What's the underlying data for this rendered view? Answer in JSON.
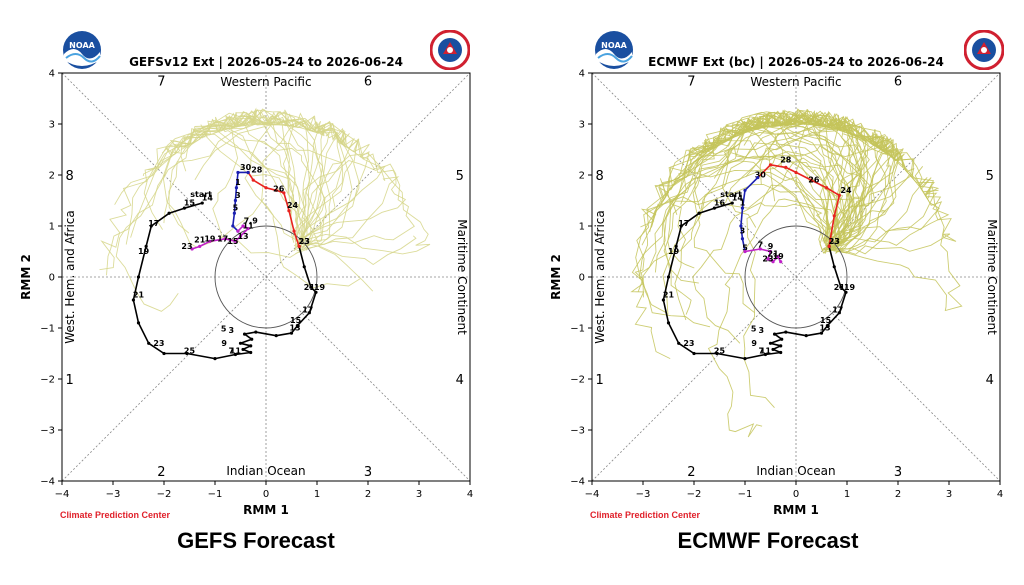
{
  "chart_data": [
    {
      "type": "line",
      "title": "GEFSv12 Ext | 2026-05-24 to 2026-06-24",
      "xlabel": "RMM 1",
      "ylabel": "RMM 2",
      "xlim": [
        -4,
        4
      ],
      "ylim": [
        -4,
        4
      ],
      "ticks": [
        "-4",
        "-3",
        "-2",
        "-1",
        "0",
        "1",
        "2",
        "3",
        "4"
      ],
      "phases": [
        "1",
        "2",
        "3",
        "4",
        "5",
        "6",
        "7",
        "8"
      ],
      "regions": {
        "top": "Western Pacific",
        "bottom": "Indian Ocean",
        "left": "West. Hem. and Africa",
        "right": "Maritime Continent"
      },
      "caption": "GEFS Forecast",
      "credit": "Climate Prediction Center",
      "start_label": "start",
      "observed": {
        "color": "#000000",
        "points": [
          [
            -1.25,
            1.45
          ],
          [
            -1.6,
            1.35
          ],
          [
            -1.9,
            1.25
          ],
          [
            -2.25,
            1.0
          ],
          [
            -2.35,
            0.6
          ],
          [
            -2.5,
            0.0
          ],
          [
            -2.6,
            -0.45
          ],
          [
            -2.5,
            -0.9
          ],
          [
            -2.3,
            -1.3
          ],
          [
            -2.0,
            -1.5
          ],
          [
            -1.55,
            -1.5
          ],
          [
            -1.0,
            -1.6
          ],
          [
            -0.6,
            -1.52
          ],
          [
            -0.3,
            -1.48
          ],
          [
            -0.45,
            -1.42
          ],
          [
            -0.3,
            -1.35
          ],
          [
            -0.5,
            -1.3
          ],
          [
            -0.28,
            -1.22
          ],
          [
            -0.42,
            -1.12
          ],
          [
            -0.2,
            -1.08
          ],
          [
            0.2,
            -1.15
          ],
          [
            0.5,
            -1.1
          ],
          [
            0.62,
            -0.95
          ],
          [
            0.85,
            -0.7
          ],
          [
            0.98,
            -0.3
          ],
          [
            0.88,
            -0.2
          ],
          [
            0.75,
            0.2
          ],
          [
            0.65,
            0.6
          ]
        ],
        "day_labels": [
          {
            "text": "15",
            "x": -1.5,
            "y": 1.4
          },
          {
            "text": "14",
            "x": -1.15,
            "y": 1.5
          },
          {
            "text": "17",
            "x": -2.2,
            "y": 1.0
          },
          {
            "text": "19",
            "x": -2.4,
            "y": 0.45
          },
          {
            "text": "21",
            "x": -2.5,
            "y": -0.4
          },
          {
            "text": "23",
            "x": -2.1,
            "y": -1.35
          },
          {
            "text": "25",
            "x": -1.5,
            "y": -1.5
          },
          {
            "text": "5",
            "x": -0.83,
            "y": -1.07
          },
          {
            "text": "3",
            "x": -0.68,
            "y": -1.1
          },
          {
            "text": "9",
            "x": -0.82,
            "y": -1.35
          },
          {
            "text": "7",
            "x": -0.68,
            "y": -1.5
          },
          {
            "text": "11",
            "x": -0.6,
            "y": -1.5
          },
          {
            "text": "13",
            "x": 0.57,
            "y": -1.05
          },
          {
            "text": "15",
            "x": 0.58,
            "y": -0.9
          },
          {
            "text": "17",
            "x": 0.82,
            "y": -0.7
          },
          {
            "text": "21",
            "x": 0.85,
            "y": -0.25
          },
          {
            "text": "19",
            "x": 1.05,
            "y": -0.25
          },
          {
            "text": "23",
            "x": 0.75,
            "y": 0.65
          }
        ]
      },
      "forecast_mean": {
        "color": "#e8231f",
        "points": [
          [
            0.65,
            0.6
          ],
          [
            0.55,
            0.9
          ],
          [
            0.45,
            1.3
          ],
          [
            0.35,
            1.65
          ],
          [
            0.2,
            1.7
          ],
          [
            0.0,
            1.75
          ],
          [
            -0.25,
            1.9
          ],
          [
            -0.35,
            2.05
          ]
        ],
        "day_labels": [
          {
            "text": "23",
            "x": 0.75,
            "y": 0.65
          },
          {
            "text": "24",
            "x": 0.52,
            "y": 1.35
          },
          {
            "text": "26",
            "x": 0.25,
            "y": 1.68
          },
          {
            "text": "28",
            "x": -0.18,
            "y": 2.05
          }
        ]
      },
      "week2": {
        "color": "#1a1fb0",
        "points": [
          [
            -0.35,
            2.05
          ],
          [
            -0.55,
            2.05
          ],
          [
            -0.58,
            1.75
          ],
          [
            -0.6,
            1.5
          ],
          [
            -0.62,
            1.25
          ],
          [
            -0.65,
            1.0
          ],
          [
            -0.55,
            0.9
          ]
        ],
        "day_labels": [
          {
            "text": "30",
            "x": -0.4,
            "y": 2.1
          },
          {
            "text": "1",
            "x": -0.55,
            "y": 1.8
          },
          {
            "text": "3",
            "x": -0.55,
            "y": 1.55
          },
          {
            "text": "5",
            "x": -0.6,
            "y": 1.3
          }
        ]
      },
      "week3": {
        "color": "#c020c8",
        "points": [
          [
            -0.55,
            0.9
          ],
          [
            -0.45,
            1.0
          ],
          [
            -0.35,
            0.95
          ],
          [
            -0.5,
            0.8
          ],
          [
            -0.6,
            0.7
          ],
          [
            -0.8,
            0.75
          ],
          [
            -1.1,
            0.7
          ],
          [
            -1.3,
            0.6
          ],
          [
            -1.45,
            0.55
          ]
        ],
        "day_labels": [
          {
            "text": "7,9",
            "x": -0.3,
            "y": 1.05
          },
          {
            "text": "11",
            "x": -0.35,
            "y": 0.95
          },
          {
            "text": "13",
            "x": -0.45,
            "y": 0.75
          },
          {
            "text": "15",
            "x": -0.65,
            "y": 0.65
          },
          {
            "text": "17",
            "x": -0.85,
            "y": 0.7
          },
          {
            "text": "19",
            "x": -1.1,
            "y": 0.7
          },
          {
            "text": "21",
            "x": -1.3,
            "y": 0.68
          },
          {
            "text": "23",
            "x": -1.55,
            "y": 0.55
          }
        ]
      },
      "ensemble_color": "#d6d68a",
      "ensemble_spread": 0.75,
      "ensemble_members": 30
    },
    {
      "type": "line",
      "title": "ECMWF Ext (bc) | 2026-05-24 to 2026-06-24",
      "xlabel": "RMM 1",
      "ylabel": "RMM 2",
      "xlim": [
        -4,
        4
      ],
      "ylim": [
        -4,
        4
      ],
      "ticks": [
        "-4",
        "-3",
        "-2",
        "-1",
        "0",
        "1",
        "2",
        "3",
        "4"
      ],
      "phases": [
        "1",
        "2",
        "3",
        "4",
        "5",
        "6",
        "7",
        "8"
      ],
      "regions": {
        "top": "Western Pacific",
        "bottom": "Indian Ocean",
        "left": "West. Hem. and Africa",
        "right": "Maritime Continent"
      },
      "caption": "ECMWF Forecast",
      "credit": "Climate Prediction Center",
      "start_label": "start",
      "observed": {
        "color": "#000000",
        "points": [
          [
            -1.25,
            1.45
          ],
          [
            -1.6,
            1.35
          ],
          [
            -1.9,
            1.25
          ],
          [
            -2.25,
            1.0
          ],
          [
            -2.35,
            0.6
          ],
          [
            -2.5,
            0.0
          ],
          [
            -2.6,
            -0.45
          ],
          [
            -2.5,
            -0.9
          ],
          [
            -2.3,
            -1.3
          ],
          [
            -2.0,
            -1.5
          ],
          [
            -1.55,
            -1.5
          ],
          [
            -1.0,
            -1.6
          ],
          [
            -0.6,
            -1.52
          ],
          [
            -0.3,
            -1.48
          ],
          [
            -0.45,
            -1.42
          ],
          [
            -0.3,
            -1.35
          ],
          [
            -0.5,
            -1.3
          ],
          [
            -0.28,
            -1.22
          ],
          [
            -0.42,
            -1.12
          ],
          [
            -0.2,
            -1.08
          ],
          [
            0.2,
            -1.15
          ],
          [
            0.5,
            -1.1
          ],
          [
            0.62,
            -0.95
          ],
          [
            0.85,
            -0.7
          ],
          [
            0.98,
            -0.3
          ],
          [
            0.88,
            -0.2
          ],
          [
            0.75,
            0.2
          ],
          [
            0.65,
            0.6
          ]
        ],
        "day_labels": [
          {
            "text": "16",
            "x": -1.5,
            "y": 1.4
          },
          {
            "text": "14",
            "x": -1.15,
            "y": 1.5
          },
          {
            "text": "17",
            "x": -2.2,
            "y": 1.0
          },
          {
            "text": "19",
            "x": -2.4,
            "y": 0.45
          },
          {
            "text": "21",
            "x": -2.5,
            "y": -0.4
          },
          {
            "text": "23",
            "x": -2.1,
            "y": -1.35
          },
          {
            "text": "25",
            "x": -1.5,
            "y": -1.5
          },
          {
            "text": "5",
            "x": -0.83,
            "y": -1.07
          },
          {
            "text": "3",
            "x": -0.68,
            "y": -1.1
          },
          {
            "text": "9",
            "x": -0.82,
            "y": -1.35
          },
          {
            "text": "7",
            "x": -0.68,
            "y": -1.5
          },
          {
            "text": "11",
            "x": -0.6,
            "y": -1.5
          },
          {
            "text": "13",
            "x": 0.57,
            "y": -1.05
          },
          {
            "text": "15",
            "x": 0.58,
            "y": -0.9
          },
          {
            "text": "17",
            "x": 0.82,
            "y": -0.7
          },
          {
            "text": "21",
            "x": 0.85,
            "y": -0.25
          },
          {
            "text": "19",
            "x": 1.05,
            "y": -0.25
          },
          {
            "text": "23",
            "x": 0.75,
            "y": 0.65
          }
        ]
      },
      "forecast_mean": {
        "color": "#e8231f",
        "points": [
          [
            0.65,
            0.6
          ],
          [
            0.75,
            1.2
          ],
          [
            0.85,
            1.6
          ],
          [
            0.6,
            1.75
          ],
          [
            0.3,
            1.9
          ],
          [
            0.0,
            2.05
          ],
          [
            -0.2,
            2.15
          ],
          [
            -0.5,
            2.2
          ],
          [
            -0.75,
            1.95
          ]
        ],
        "day_labels": [
          {
            "text": "23",
            "x": 0.75,
            "y": 0.65
          },
          {
            "text": "24",
            "x": 0.98,
            "y": 1.65
          },
          {
            "text": "26",
            "x": 0.35,
            "y": 1.85
          },
          {
            "text": "28",
            "x": -0.2,
            "y": 2.25
          },
          {
            "text": "30",
            "x": -0.7,
            "y": 1.95
          }
        ]
      },
      "week2": {
        "color": "#1a1fb0",
        "points": [
          [
            -0.75,
            1.95
          ],
          [
            -1.0,
            1.7
          ],
          [
            -1.05,
            1.35
          ],
          [
            -1.08,
            1.0
          ],
          [
            -1.05,
            0.75
          ],
          [
            -1.0,
            0.5
          ]
        ],
        "day_labels": [
          {
            "text": "1",
            "x": -1.05,
            "y": 1.4
          },
          {
            "text": "3",
            "x": -1.05,
            "y": 0.85
          },
          {
            "text": "5",
            "x": -1.0,
            "y": 0.52
          }
        ]
      },
      "week3": {
        "color": "#c020c8",
        "points": [
          [
            -1.0,
            0.5
          ],
          [
            -0.7,
            0.55
          ],
          [
            -0.5,
            0.5
          ],
          [
            -0.55,
            0.35
          ],
          [
            -0.45,
            0.3
          ],
          [
            -0.35,
            0.4
          ],
          [
            -0.3,
            0.3
          ]
        ],
        "day_labels": [
          {
            "text": "7",
            "x": -0.7,
            "y": 0.58
          },
          {
            "text": "9",
            "x": -0.5,
            "y": 0.55
          },
          {
            "text": "21",
            "x": -0.45,
            "y": 0.4
          },
          {
            "text": "19",
            "x": -0.35,
            "y": 0.35
          },
          {
            "text": "23",
            "x": -0.55,
            "y": 0.3
          }
        ]
      },
      "ensemble_color": "#c4c45a",
      "ensemble_spread": 1.0,
      "ensemble_members": 60
    }
  ]
}
